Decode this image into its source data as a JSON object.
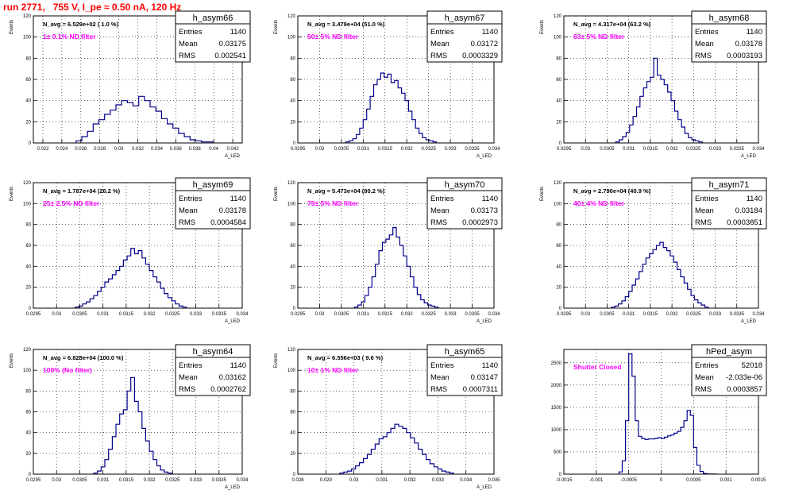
{
  "header": {
    "title": "run 2771,   755 V, I_pe ≈ 0.50 nA, 120 Hz"
  },
  "colors": {
    "histogram": "#00008b",
    "title": "#ff0000",
    "annotation": "#ff00ff",
    "grid": "#000000"
  },
  "chart_data": [
    {
      "type": "area",
      "name": "h_asym66",
      "stats": {
        "entries": "1140",
        "mean": "0.03175",
        "rms": "0.002541"
      },
      "nav_label": "N_avg = 6.529e+02 ( 1.0 %)",
      "filter_label": "1± 0.1% ND filter",
      "ylabel": "Events",
      "xlabel": "A_LED",
      "xlim": [
        0.021,
        0.043
      ],
      "ylim": [
        0,
        120
      ],
      "xticks": [
        0.022,
        0.024,
        0.026,
        0.028,
        0.03,
        0.032,
        0.034,
        0.036,
        0.038,
        0.04,
        0.042
      ],
      "xtick_labels": [
        "0.022",
        "0.024",
        "0.026",
        "0.028",
        "0.03",
        "0.032",
        "0.034",
        "0.036",
        "0.038",
        "0.04",
        "0.042"
      ],
      "yticks": [
        0,
        20,
        40,
        60,
        80,
        100,
        120
      ],
      "bin_edges": [
        0.0255,
        0.0261,
        0.0267,
        0.0273,
        0.0279,
        0.0285,
        0.0291,
        0.0297,
        0.0303,
        0.0309,
        0.0315,
        0.0321,
        0.0327,
        0.0333,
        0.0339,
        0.0345,
        0.0351,
        0.0357,
        0.0363,
        0.0369,
        0.0375,
        0.0381,
        0.0387,
        0.0393,
        0.0399
      ],
      "counts": [
        2,
        6,
        11,
        18,
        22,
        27,
        31,
        36,
        40,
        38,
        35,
        44,
        40,
        34,
        30,
        23,
        18,
        14,
        9,
        6,
        3,
        2,
        1,
        1
      ]
    },
    {
      "type": "area",
      "name": "h_asym67",
      "stats": {
        "entries": "1140",
        "mean": "0.03172",
        "rms": "0.0003329"
      },
      "nav_label": "N_avg = 3.479e+04 (51.0 %)",
      "filter_label": "50± 5% ND filter",
      "ylabel": "Events",
      "xlabel": "A_LED",
      "xlim": [
        0.0295,
        0.034
      ],
      "ylim": [
        0,
        120
      ],
      "xticks": [
        0.0295,
        0.03,
        0.0305,
        0.031,
        0.0315,
        0.032,
        0.0325,
        0.033,
        0.0335,
        0.034
      ],
      "xtick_labels": [
        "0.0295",
        "0.03",
        "0.0305",
        "0.031",
        "0.0315",
        "0.032",
        "0.0325",
        "0.033",
        "0.0335",
        "0.034"
      ],
      "yticks": [
        0,
        20,
        40,
        60,
        80,
        100,
        120
      ],
      "bin_edges": [
        0.0306,
        0.03068,
        0.03076,
        0.03084,
        0.03092,
        0.031,
        0.03108,
        0.03116,
        0.03124,
        0.03132,
        0.0314,
        0.03148,
        0.03156,
        0.03164,
        0.03172,
        0.0318,
        0.03188,
        0.03196,
        0.03204,
        0.03212,
        0.0322,
        0.03228,
        0.03236,
        0.03244,
        0.03252,
        0.0326,
        0.03268
      ],
      "counts": [
        1,
        2,
        4,
        8,
        14,
        22,
        32,
        44,
        55,
        60,
        66,
        62,
        65,
        57,
        59,
        52,
        47,
        40,
        30,
        22,
        14,
        9,
        5,
        3,
        2,
        1
      ]
    },
    {
      "type": "area",
      "name": "h_asym68",
      "stats": {
        "entries": "1140",
        "mean": "0.03178",
        "rms": "0.0003193"
      },
      "nav_label": "N_avg = 4.317e+04 (63.2 %)",
      "filter_label": "63± 5% ND filter",
      "ylabel": "Events",
      "xlabel": "A_LED",
      "xlim": [
        0.0295,
        0.034
      ],
      "ylim": [
        0,
        120
      ],
      "xticks": [
        0.0295,
        0.03,
        0.0305,
        0.031,
        0.0315,
        0.032,
        0.0325,
        0.033,
        0.0335,
        0.034
      ],
      "xtick_labels": [
        "0.0295",
        "0.03",
        "0.0305",
        "0.031",
        "0.0315",
        "0.032",
        "0.0325",
        "0.033",
        "0.0335",
        "0.034"
      ],
      "yticks": [
        0,
        20,
        40,
        60,
        80,
        100,
        120
      ],
      "bin_edges": [
        0.0307,
        0.03078,
        0.03086,
        0.03094,
        0.03102,
        0.0311,
        0.03118,
        0.03126,
        0.03134,
        0.03142,
        0.0315,
        0.03158,
        0.03166,
        0.03174,
        0.03182,
        0.0319,
        0.03198,
        0.03206,
        0.03214,
        0.03222,
        0.0323,
        0.03238,
        0.03246,
        0.03254,
        0.03262,
        0.0327
      ],
      "counts": [
        1,
        3,
        6,
        10,
        17,
        25,
        34,
        44,
        52,
        58,
        62,
        80,
        64,
        60,
        55,
        48,
        40,
        30,
        22,
        15,
        9,
        5,
        3,
        2,
        1
      ]
    },
    {
      "type": "area",
      "name": "h_asym69",
      "stats": {
        "entries": "1140",
        "mean": "0.03178",
        "rms": "0.0004584"
      },
      "nav_label": "N_avg = 1.787e+04 (26.2 %)",
      "filter_label": "25± 2.5% ND filter",
      "ylabel": "Events",
      "xlabel": "A_LED",
      "xlim": [
        0.0295,
        0.034
      ],
      "ylim": [
        0,
        120
      ],
      "xticks": [
        0.0295,
        0.03,
        0.0305,
        0.031,
        0.0315,
        0.032,
        0.0325,
        0.033,
        0.0335,
        0.034
      ],
      "xtick_labels": [
        "0.0295",
        "0.03",
        "0.0305",
        "0.031",
        "0.0315",
        "0.032",
        "0.0325",
        "0.033",
        "0.0335",
        "0.034"
      ],
      "yticks": [
        0,
        20,
        40,
        60,
        80,
        100,
        120
      ],
      "bin_edges": [
        0.0304,
        0.03048,
        0.03056,
        0.03064,
        0.03072,
        0.0308,
        0.03088,
        0.03096,
        0.03104,
        0.03112,
        0.0312,
        0.03128,
        0.03136,
        0.03144,
        0.03152,
        0.0316,
        0.03168,
        0.03176,
        0.03184,
        0.03192,
        0.032,
        0.03208,
        0.03216,
        0.03224,
        0.03232,
        0.0324,
        0.03248,
        0.03256,
        0.03264,
        0.03272,
        0.0328
      ],
      "counts": [
        1,
        2,
        4,
        6,
        9,
        12,
        16,
        20,
        25,
        28,
        32,
        36,
        40,
        46,
        50,
        57,
        52,
        55,
        48,
        42,
        36,
        30,
        25,
        19,
        14,
        10,
        7,
        4,
        2,
        1
      ]
    },
    {
      "type": "area",
      "name": "h_asym70",
      "stats": {
        "entries": "1140",
        "mean": "0.03173",
        "rms": "0.0002973"
      },
      "nav_label": "N_avg = 5.473e+04 (80.2 %)",
      "filter_label": "79± 5% ND filter",
      "ylabel": "Events",
      "xlabel": "A_LED",
      "xlim": [
        0.0295,
        0.034
      ],
      "ylim": [
        0,
        120
      ],
      "xticks": [
        0.0295,
        0.03,
        0.0305,
        0.031,
        0.0315,
        0.032,
        0.0325,
        0.033,
        0.0335,
        0.034
      ],
      "xtick_labels": [
        "0.0295",
        "0.03",
        "0.0305",
        "0.031",
        "0.0315",
        "0.032",
        "0.0325",
        "0.033",
        "0.0335",
        "0.034"
      ],
      "yticks": [
        0,
        20,
        40,
        60,
        80,
        100,
        120
      ],
      "bin_edges": [
        0.0308,
        0.03088,
        0.03096,
        0.03104,
        0.03112,
        0.0312,
        0.03128,
        0.03136,
        0.03144,
        0.03152,
        0.0316,
        0.03168,
        0.03176,
        0.03184,
        0.03192,
        0.032,
        0.03208,
        0.03216,
        0.03224,
        0.03232,
        0.0324,
        0.03248,
        0.03256,
        0.03264,
        0.03272
      ],
      "counts": [
        1,
        3,
        6,
        12,
        20,
        30,
        42,
        55,
        63,
        66,
        70,
        77,
        68,
        60,
        50,
        40,
        30,
        20,
        13,
        8,
        5,
        3,
        2,
        1
      ]
    },
    {
      "type": "area",
      "name": "h_asym71",
      "stats": {
        "entries": "1140",
        "mean": "0.03184",
        "rms": "0.0003851"
      },
      "nav_label": "N_avg = 2.790e+04 (40.9 %)",
      "filter_label": "40± 4% ND filter",
      "ylabel": "Events",
      "xlabel": "A_LED",
      "xlim": [
        0.0295,
        0.034
      ],
      "ylim": [
        0,
        120
      ],
      "xticks": [
        0.0295,
        0.03,
        0.0305,
        0.031,
        0.0315,
        0.032,
        0.0325,
        0.033,
        0.0335,
        0.034
      ],
      "xtick_labels": [
        "0.0295",
        "0.03",
        "0.0305",
        "0.031",
        "0.0315",
        "0.032",
        "0.0325",
        "0.033",
        "0.0335",
        "0.034"
      ],
      "yticks": [
        0,
        20,
        40,
        60,
        80,
        100,
        120
      ],
      "bin_edges": [
        0.0306,
        0.03068,
        0.03076,
        0.03084,
        0.03092,
        0.031,
        0.03108,
        0.03116,
        0.03124,
        0.03132,
        0.0314,
        0.03148,
        0.03156,
        0.03164,
        0.03172,
        0.0318,
        0.03188,
        0.03196,
        0.03204,
        0.03212,
        0.0322,
        0.03228,
        0.03236,
        0.03244,
        0.03252,
        0.0326,
        0.03268,
        0.03276,
        0.03284
      ],
      "counts": [
        1,
        2,
        4,
        7,
        11,
        16,
        22,
        28,
        35,
        42,
        48,
        52,
        56,
        60,
        63,
        58,
        55,
        50,
        44,
        37,
        30,
        24,
        18,
        12,
        8,
        5,
        3,
        1
      ]
    },
    {
      "type": "area",
      "name": "h_asym64",
      "stats": {
        "entries": "1140",
        "mean": "0.03162",
        "rms": "0.0002762"
      },
      "nav_label": "N_avg = 6.828e+04 (100.0 %)",
      "filter_label": "100% (No filter)",
      "ylabel": "Events",
      "xlabel": "A_LED",
      "xlim": [
        0.0295,
        0.034
      ],
      "ylim": [
        0,
        120
      ],
      "xticks": [
        0.0295,
        0.03,
        0.0305,
        0.031,
        0.0315,
        0.032,
        0.0325,
        0.033,
        0.0335,
        0.034
      ],
      "xtick_labels": [
        "0.0295",
        "0.03",
        "0.0305",
        "0.031",
        "0.0315",
        "0.032",
        "0.0325",
        "0.033",
        "0.0335",
        "0.034"
      ],
      "yticks": [
        0,
        20,
        40,
        60,
        80,
        100,
        120
      ],
      "bin_edges": [
        0.0308,
        0.03088,
        0.03096,
        0.03104,
        0.03112,
        0.0312,
        0.03128,
        0.03136,
        0.03144,
        0.03152,
        0.0316,
        0.03168,
        0.03176,
        0.03184,
        0.03192,
        0.032,
        0.03208,
        0.03216,
        0.03224,
        0.03232,
        0.0324,
        0.03248
      ],
      "counts": [
        1,
        3,
        7,
        14,
        24,
        36,
        48,
        58,
        62,
        80,
        93,
        70,
        60,
        44,
        32,
        22,
        14,
        8,
        4,
        2,
        1
      ]
    },
    {
      "type": "area",
      "name": "h_asym65",
      "stats": {
        "entries": "1140",
        "mean": "0.03147",
        "rms": "0.0007311"
      },
      "nav_label": "N_avg = 6.556e+03 ( 9.6 %)",
      "filter_label": "10± 1% ND filter",
      "ylabel": "Events",
      "xlabel": "A_LED",
      "xlim": [
        0.028,
        0.035
      ],
      "ylim": [
        0,
        120
      ],
      "xticks": [
        0.028,
        0.029,
        0.03,
        0.031,
        0.032,
        0.033,
        0.034,
        0.035
      ],
      "xtick_labels": [
        "0.028",
        "0.029",
        "0.03",
        "0.031",
        "0.032",
        "0.033",
        "0.034",
        "0.035"
      ],
      "yticks": [
        0,
        20,
        40,
        60,
        80,
        100,
        120
      ],
      "bin_edges": [
        0.0295,
        0.02964,
        0.02978,
        0.02992,
        0.03006,
        0.0302,
        0.03034,
        0.03048,
        0.03062,
        0.03076,
        0.0309,
        0.03104,
        0.03118,
        0.03132,
        0.03146,
        0.0316,
        0.03174,
        0.03188,
        0.03202,
        0.03216,
        0.0323,
        0.03244,
        0.03258,
        0.03272,
        0.03286,
        0.033,
        0.03314,
        0.03328,
        0.03342,
        0.03356
      ],
      "counts": [
        1,
        2,
        3,
        5,
        8,
        11,
        15,
        19,
        24,
        29,
        34,
        36,
        40,
        44,
        48,
        46,
        44,
        40,
        35,
        30,
        24,
        19,
        14,
        10,
        7,
        5,
        3,
        2,
        1
      ]
    },
    {
      "type": "area",
      "name": "hPed_asym",
      "stats": {
        "entries": "52018",
        "mean": "-2.033e-06",
        "rms": "0.0003857"
      },
      "nav_label": "",
      "filter_label": "Shutter Closed",
      "ylabel": "",
      "xlabel": "",
      "xlim": [
        -0.0015,
        0.0015
      ],
      "ylim": [
        0,
        2800
      ],
      "xticks": [
        -0.0015,
        -0.001,
        -0.0005,
        0,
        0.0005,
        0.001,
        0.0015
      ],
      "xtick_labels": [
        "-0.0015",
        "-0.001",
        "-0.0005",
        "0",
        "0.0005",
        "0.001",
        "0.0015"
      ],
      "yticks": [
        0,
        500,
        1000,
        1500,
        2000,
        2500
      ],
      "bin_edges": [
        -0.00065,
        -0.0006,
        -0.00055,
        -0.0005,
        -0.00045,
        -0.0004,
        -0.00035,
        -0.0003,
        -0.00025,
        -0.0002,
        -0.00015,
        -0.0001,
        -5e-05,
        0,
        5e-05,
        0.0001,
        0.00015,
        0.0002,
        0.00025,
        0.0003,
        0.00035,
        0.0004,
        0.00045,
        0.0005,
        0.00055,
        0.0006,
        0.00065,
        0.0007,
        0.00075,
        0.0008,
        0.00085
      ],
      "counts": [
        50,
        300,
        1200,
        2700,
        2200,
        1200,
        850,
        800,
        780,
        790,
        790,
        800,
        820,
        800,
        830,
        860,
        880,
        920,
        960,
        1050,
        1200,
        1430,
        1320,
        600,
        200,
        60,
        15,
        5,
        2,
        1
      ]
    }
  ]
}
